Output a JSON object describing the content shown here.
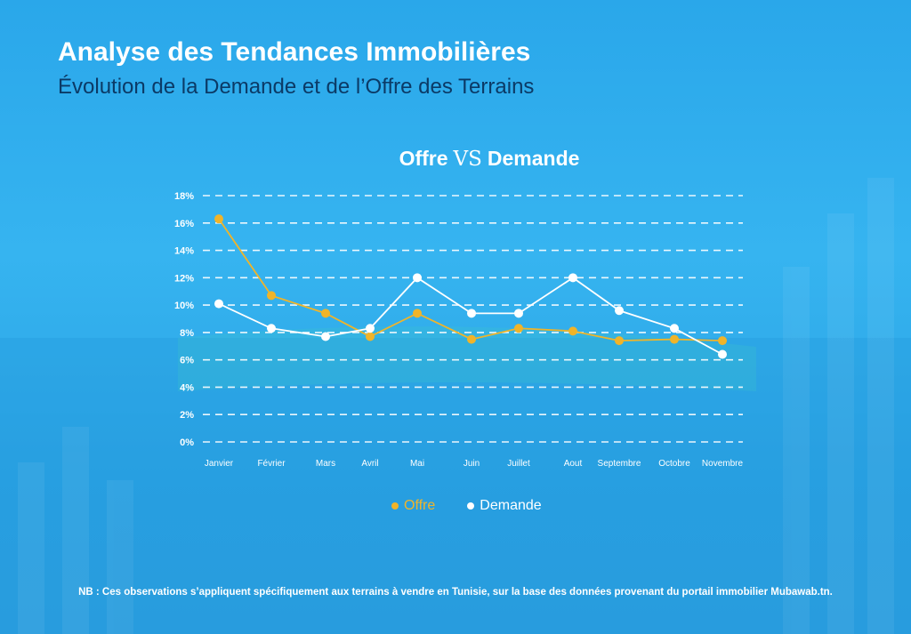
{
  "header": {
    "title": "Analyse des Tendances Immobilières",
    "subtitle": "Évolution de la Demande et de l’Offre des Terrains"
  },
  "chart_title": {
    "left": "Offre",
    "vs": "VS",
    "right": "Demande"
  },
  "chart_data": {
    "type": "line",
    "title": "Offre VS Demande",
    "categories": [
      "Janvier",
      "Février",
      "Mars",
      "Avril",
      "Mai",
      "Juin",
      "Juillet",
      "Aout",
      "Septembre",
      "Octobre",
      "Novembre"
    ],
    "ylim": [
      0,
      18
    ],
    "yticks": [
      "0%",
      "2%",
      "4%",
      "6%",
      "8%",
      "10%",
      "12%",
      "14%",
      "16%",
      "18%"
    ],
    "grid": true,
    "legend_position": "bottom",
    "series": [
      {
        "name": "Offre",
        "color": "#f0b429",
        "values": [
          16.3,
          10.7,
          9.4,
          7.7,
          9.4,
          7.5,
          8.3,
          8.1,
          7.4,
          7.5,
          7.4
        ]
      },
      {
        "name": "Demande",
        "color": "#ffffff",
        "values": [
          10.1,
          8.3,
          7.7,
          8.3,
          12.0,
          9.4,
          9.4,
          12.0,
          9.6,
          8.3,
          6.4
        ]
      }
    ]
  },
  "note": "NB : Ces observations s’appliquent spécifiquement aux terrains à vendre en Tunisie, sur la base des données provenant du portail immobilier Mubawab.tn."
}
